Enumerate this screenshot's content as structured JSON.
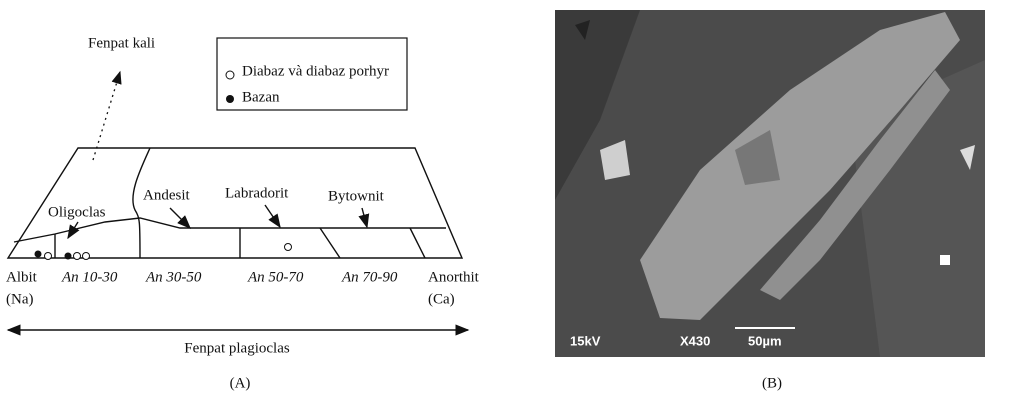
{
  "panel_a": {
    "label": "(A)",
    "top_label": "Fenpat kali",
    "legend": [
      "Diabaz và diabaz porhyr",
      "Bazan"
    ],
    "fields": [
      "Oligoclas",
      "Andesit",
      "Labradorit",
      "Bytownit"
    ],
    "bottom": {
      "left": [
        "Albit",
        "(Na)"
      ],
      "ranges": [
        "An 10-30",
        "An 30-50",
        "An 50-70",
        "An 70-90"
      ],
      "right": [
        "Anorthit",
        "(Ca)"
      ]
    },
    "axis_label": "Fenpat plagioclas"
  },
  "panel_b": {
    "label": "(B)",
    "scale": [
      "15kV",
      "X430",
      "50µm"
    ]
  }
}
